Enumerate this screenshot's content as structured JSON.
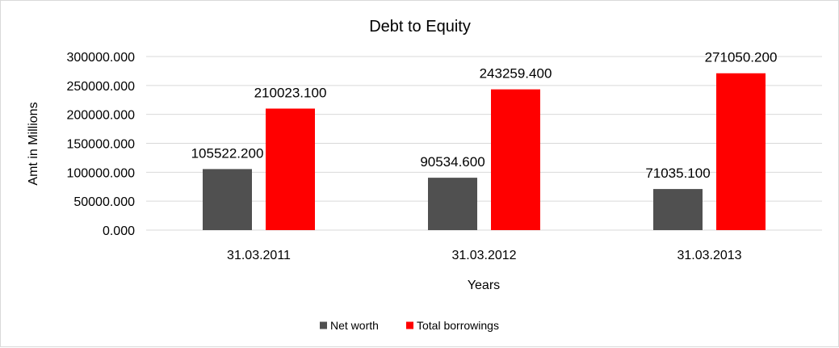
{
  "chart_data": {
    "type": "bar",
    "title": "Debt to Equity",
    "xlabel": "Years",
    "ylabel": "Amt in Millions",
    "categories": [
      "31.03.2011",
      "31.03.2012",
      "31.03.2013"
    ],
    "series": [
      {
        "name": "Net worth",
        "color": "#505050",
        "values": [
          105522.2,
          90534.6,
          71035.1
        ],
        "labels": [
          "105522.200",
          "90534.600",
          "71035.100"
        ]
      },
      {
        "name": "Total borrowings",
        "color": "#ff0000",
        "values": [
          210023.1,
          243259.4,
          271050.2
        ],
        "labels": [
          "210023.100",
          "243259.400",
          "271050.200"
        ]
      }
    ],
    "ylim": [
      0,
      300000
    ],
    "yticks": [
      0,
      50000,
      100000,
      150000,
      200000,
      250000,
      300000
    ],
    "ytick_labels": [
      "0.000",
      "50000.000",
      "100000.000",
      "150000.000",
      "200000.000",
      "250000.000",
      "300000.000"
    ],
    "grid": true,
    "legend_position": "bottom"
  }
}
